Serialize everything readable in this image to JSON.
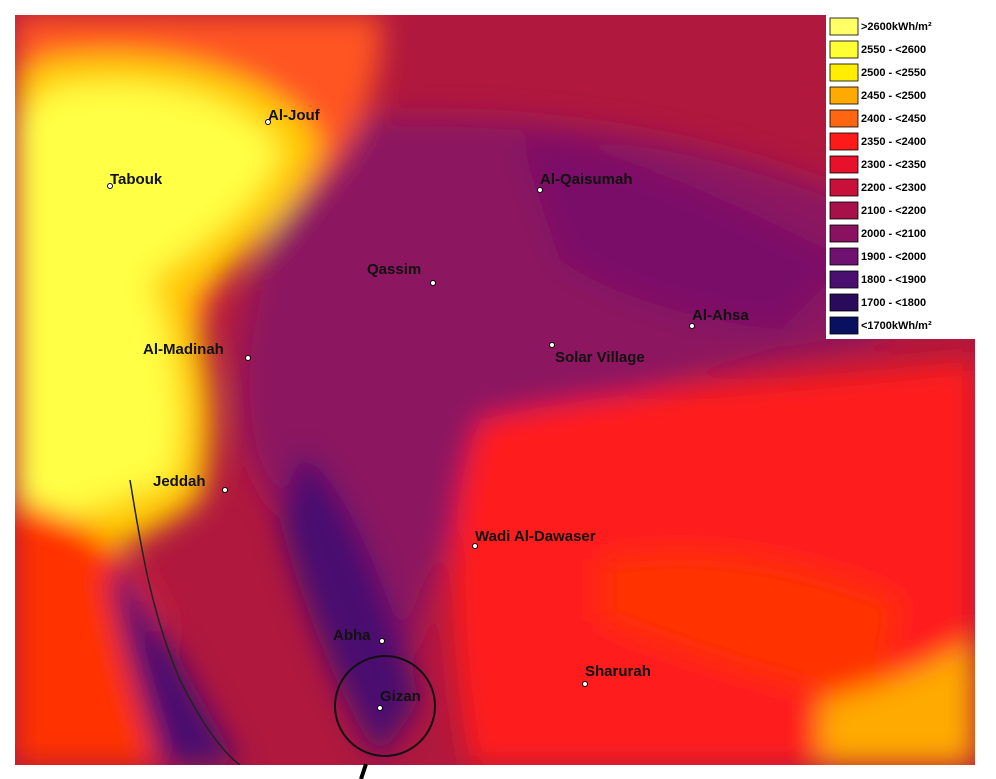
{
  "map": {
    "cities": [
      "Al-Jouf",
      "Tabouk",
      "Al-Qaisumah",
      "Qassim",
      "Al-Ahsa",
      "Al-Madinah",
      "Solar Village",
      "Jeddah",
      "Wadi Al-Dawaser",
      "Abha",
      "Gizan",
      "Sharurah"
    ],
    "legend": [
      {
        "label": ">2600kWh/m²",
        "color": "#ffff66"
      },
      {
        "label": "2550 - <2600",
        "color": "#ffff33"
      },
      {
        "label": "2500 - <2550",
        "color": "#ffee00"
      },
      {
        "label": "2450 - <2500",
        "color": "#ffaa00"
      },
      {
        "label": "2400 - <2450",
        "color": "#ff6611"
      },
      {
        "label": "2350 - <2400",
        "color": "#ff1a1a"
      },
      {
        "label": "2300 - <2350",
        "color": "#e8102a"
      },
      {
        "label": "2200 - <2300",
        "color": "#c8103a"
      },
      {
        "label": "2100 - <2200",
        "color": "#a8104a"
      },
      {
        "label": "2000 - <2100",
        "color": "#8a1060"
      },
      {
        "label": "1900 - <2000",
        "color": "#701070"
      },
      {
        "label": "1800 - <1900",
        "color": "#4a1070"
      },
      {
        "label": "1700 - <1800",
        "color": "#2a0a5a"
      },
      {
        "label": "<1700kWh/m²",
        "color": "#0a1060"
      }
    ]
  }
}
